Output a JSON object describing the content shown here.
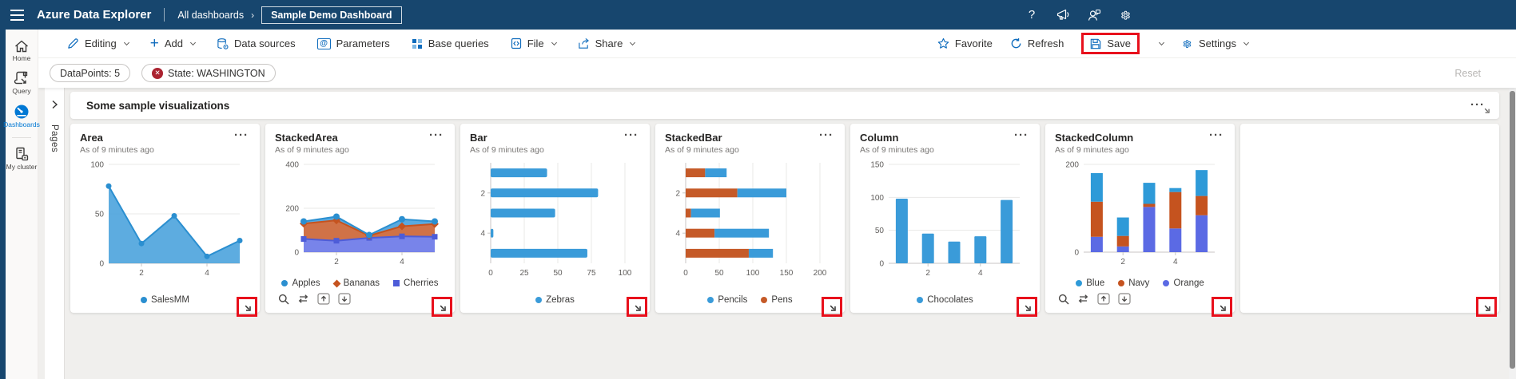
{
  "topbar": {
    "title": "Azure Data Explorer",
    "breadcrumb_root": "All dashboards",
    "breadcrumb_current": "Sample Demo Dashboard"
  },
  "toolbar": {
    "items": [
      {
        "label": "Editing",
        "chevron": true
      },
      {
        "label": "Add",
        "chevron": true
      },
      {
        "label": "Data sources",
        "chevron": false
      },
      {
        "label": "Parameters",
        "chevron": false
      },
      {
        "label": "Base queries",
        "chevron": false
      },
      {
        "label": "File",
        "chevron": true
      },
      {
        "label": "Share",
        "chevron": true
      }
    ],
    "favorite": "Favorite",
    "refresh": "Refresh",
    "save": "Save",
    "settings": "Settings"
  },
  "filters": {
    "pills": [
      {
        "label": "DataPoints: 5",
        "removable": false
      },
      {
        "label": "State: WASHINGTON",
        "removable": true
      }
    ],
    "reset": "Reset"
  },
  "sidebar": {
    "items": [
      {
        "label": "Home",
        "active": false
      },
      {
        "label": "Query",
        "active": false
      },
      {
        "label": "Dashboards",
        "active": true
      },
      {
        "label": "My cluster",
        "active": false
      }
    ]
  },
  "pages": {
    "label": "Pages"
  },
  "section": {
    "title": "Some sample visualizations"
  },
  "icons": {
    "more": "···",
    "remove_x": "✕",
    "help": "?",
    "pages_chevron": ">"
  },
  "annotation": {
    "color": "#e8101c"
  },
  "colors": {
    "accent_blue": "#0f6cbd",
    "active_nav": "#0078d4",
    "topbar_navy": "#17466e",
    "series_blue": "#3a9bd9",
    "series_orange": "#c55a28",
    "series_violet": "#5b6ae4"
  },
  "tiles": [
    {
      "title": "Area",
      "subtitle": "As of 9 minutes ago",
      "actions": false,
      "legend": [
        {
          "label": "SalesMM",
          "color": "#2b8fd0",
          "marker": "circle"
        }
      ]
    },
    {
      "title": "StackedArea",
      "subtitle": "As of 9 minutes ago",
      "actions": true,
      "legend": [
        {
          "label": "Apples",
          "color": "#2b8fd0",
          "marker": "circle"
        },
        {
          "label": "Bananas",
          "color": "#c5531f",
          "marker": "diamond"
        },
        {
          "label": "Cherries",
          "color": "#4d5cd8",
          "marker": "square"
        }
      ]
    },
    {
      "title": "Bar",
      "subtitle": "As of 9 minutes ago",
      "actions": false,
      "legend": [
        {
          "label": "Zebras",
          "color": "#3a9bd9",
          "marker": "circle"
        }
      ]
    },
    {
      "title": "StackedBar",
      "subtitle": "As of 9 minutes ago",
      "actions": false,
      "legend": [
        {
          "label": "Pencils",
          "color": "#3a9bd9",
          "marker": "circle"
        },
        {
          "label": "Pens",
          "color": "#c55a28",
          "marker": "circle"
        }
      ]
    },
    {
      "title": "Column",
      "subtitle": "As of 9 minutes ago",
      "actions": false,
      "legend": [
        {
          "label": "Chocolates",
          "color": "#3a9bd9",
          "marker": "circle"
        }
      ]
    },
    {
      "title": "StackedColumn",
      "subtitle": "As of 9 minutes ago",
      "actions": true,
      "legend": [
        {
          "label": "Blue",
          "color": "#2e9ad8",
          "marker": "circle"
        },
        {
          "label": "Navy",
          "color": "#c5531f",
          "marker": "circle"
        },
        {
          "label": "Orange",
          "color": "#5b6ae4",
          "marker": "circle"
        }
      ]
    }
  ],
  "chart_data": [
    {
      "type": "area",
      "title": "Area",
      "x": [
        1,
        2,
        3,
        4,
        5
      ],
      "values": [
        78,
        20,
        48,
        7,
        23
      ],
      "color": "#2b8fd0",
      "fill": "#4ba3dd",
      "ylim": [
        0,
        100
      ],
      "yticks": [
        0,
        50,
        100
      ],
      "xticks": [
        2,
        4
      ],
      "legend_position": "bottom"
    },
    {
      "type": "stacked_area",
      "title": "StackedArea",
      "x": [
        1,
        2,
        3,
        4,
        5
      ],
      "series": [
        {
          "name": "Cherries",
          "values": [
            60,
            52,
            65,
            72,
            70
          ],
          "color": "#4d5cd8",
          "fill": "#6d7ae8",
          "marker": "square"
        },
        {
          "name": "Bananas",
          "values": [
            70,
            93,
            10,
            46,
            58
          ],
          "color": "#c5531f",
          "fill": "#cc6637",
          "marker": "diamond"
        },
        {
          "name": "Apples",
          "values": [
            10,
            17,
            3,
            32,
            12
          ],
          "color": "#2b8fd0",
          "fill": "#4ba3dd",
          "marker": "circle"
        }
      ],
      "ylim": [
        0,
        400
      ],
      "yticks": [
        0,
        200,
        400
      ],
      "xticks": [
        2,
        4
      ],
      "legend_position": "bottom"
    },
    {
      "type": "bar_h",
      "title": "Bar",
      "categories": [
        1,
        2,
        3,
        4,
        5
      ],
      "values": [
        42,
        80,
        48,
        2,
        72
      ],
      "color": "#3a9bd9",
      "xlim": [
        0,
        100
      ],
      "xticks": [
        0,
        25,
        50,
        75,
        100
      ],
      "row_labels": [
        {
          "row": 1,
          "label": "2"
        },
        {
          "row": 3,
          "label": "4"
        }
      ],
      "legend_position": "bottom"
    },
    {
      "type": "stacked_bar_h",
      "title": "StackedBar",
      "categories": [
        1,
        2,
        3,
        4,
        5
      ],
      "series": [
        {
          "name": "Pens",
          "values": [
            29,
            77,
            8,
            43,
            94
          ],
          "color": "#c55a28"
        },
        {
          "name": "Pencils",
          "values": [
            32,
            73,
            43,
            81,
            36
          ],
          "color": "#3a9bd9"
        }
      ],
      "xlim": [
        0,
        200
      ],
      "xticks": [
        0,
        50,
        100,
        150,
        200
      ],
      "row_labels": [
        {
          "row": 1,
          "label": "2"
        },
        {
          "row": 3,
          "label": "4"
        }
      ],
      "legend_position": "bottom"
    },
    {
      "type": "column",
      "title": "Column",
      "categories": [
        1,
        2,
        3,
        4,
        5
      ],
      "values": [
        98,
        45,
        33,
        41,
        96
      ],
      "color": "#3a9bd9",
      "ylim": [
        0,
        150
      ],
      "yticks": [
        0,
        50,
        100,
        150
      ],
      "xticks": [
        2,
        4
      ],
      "legend_position": "bottom"
    },
    {
      "type": "stacked_column",
      "title": "StackedColumn",
      "categories": [
        1,
        2,
        3,
        4,
        5
      ],
      "series": [
        {
          "name": "Orange",
          "values": [
            35,
            13,
            103,
            54,
            84
          ],
          "color": "#5b6ae4"
        },
        {
          "name": "Navy",
          "values": [
            80,
            24,
            7,
            83,
            44
          ],
          "color": "#c5531f"
        },
        {
          "name": "Blue",
          "values": [
            65,
            42,
            48,
            9,
            59
          ],
          "color": "#2e9ad8"
        }
      ],
      "ylim": [
        0,
        200
      ],
      "yticks": [
        0,
        200
      ],
      "xticks": [
        2,
        4
      ],
      "legend_position": "bottom"
    }
  ]
}
